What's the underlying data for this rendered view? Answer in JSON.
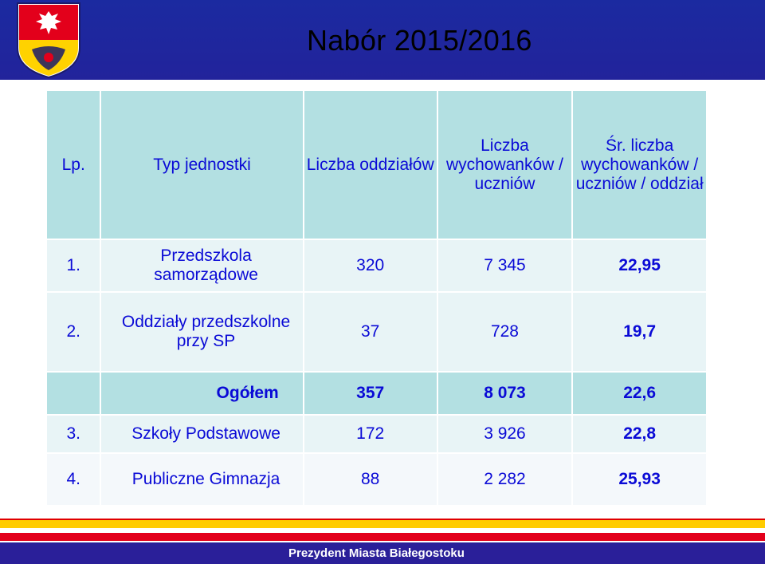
{
  "header": {
    "title": "Nabór 2015/2016"
  },
  "table": {
    "columns": [
      "Lp.",
      "Typ jednostki",
      "Liczba oddziałów",
      "Liczba wychowanków / uczniów",
      "Śr. liczba wychowanków / uczniów / oddział"
    ],
    "rows": [
      {
        "lp": "1.",
        "typ": "Przedszkola samorządowe",
        "oddzialy": "320",
        "uczniowie": "7 345",
        "srednia": "22,95"
      },
      {
        "lp": "2.",
        "typ": "Oddziały przedszkolne przy SP",
        "oddzialy": "37",
        "uczniowie": "728",
        "srednia": "19,7"
      },
      {
        "lp": "",
        "typ": "Ogółem",
        "oddzialy": "357",
        "uczniowie": "8 073",
        "srednia": "22,6"
      },
      {
        "lp": "3.",
        "typ": "Szkoły Podstawowe",
        "oddzialy": "172",
        "uczniowie": "3 926",
        "srednia": "22,8"
      },
      {
        "lp": "4.",
        "typ": "Publiczne Gimnazja",
        "oddzialy": "88",
        "uczniowie": "2 282",
        "srednia": "25,93"
      }
    ]
  },
  "footer": {
    "text": "Prezydent Miasta Białegostoku"
  },
  "colors": {
    "header_band": "#1b2aa0",
    "table_header": "#b3e0e2",
    "text_blue": "#1010e0",
    "footer_yellow": "#ffcc00",
    "footer_red": "#e3001b"
  },
  "icons": {
    "crest": "bialystok-coat-of-arms-icon"
  }
}
